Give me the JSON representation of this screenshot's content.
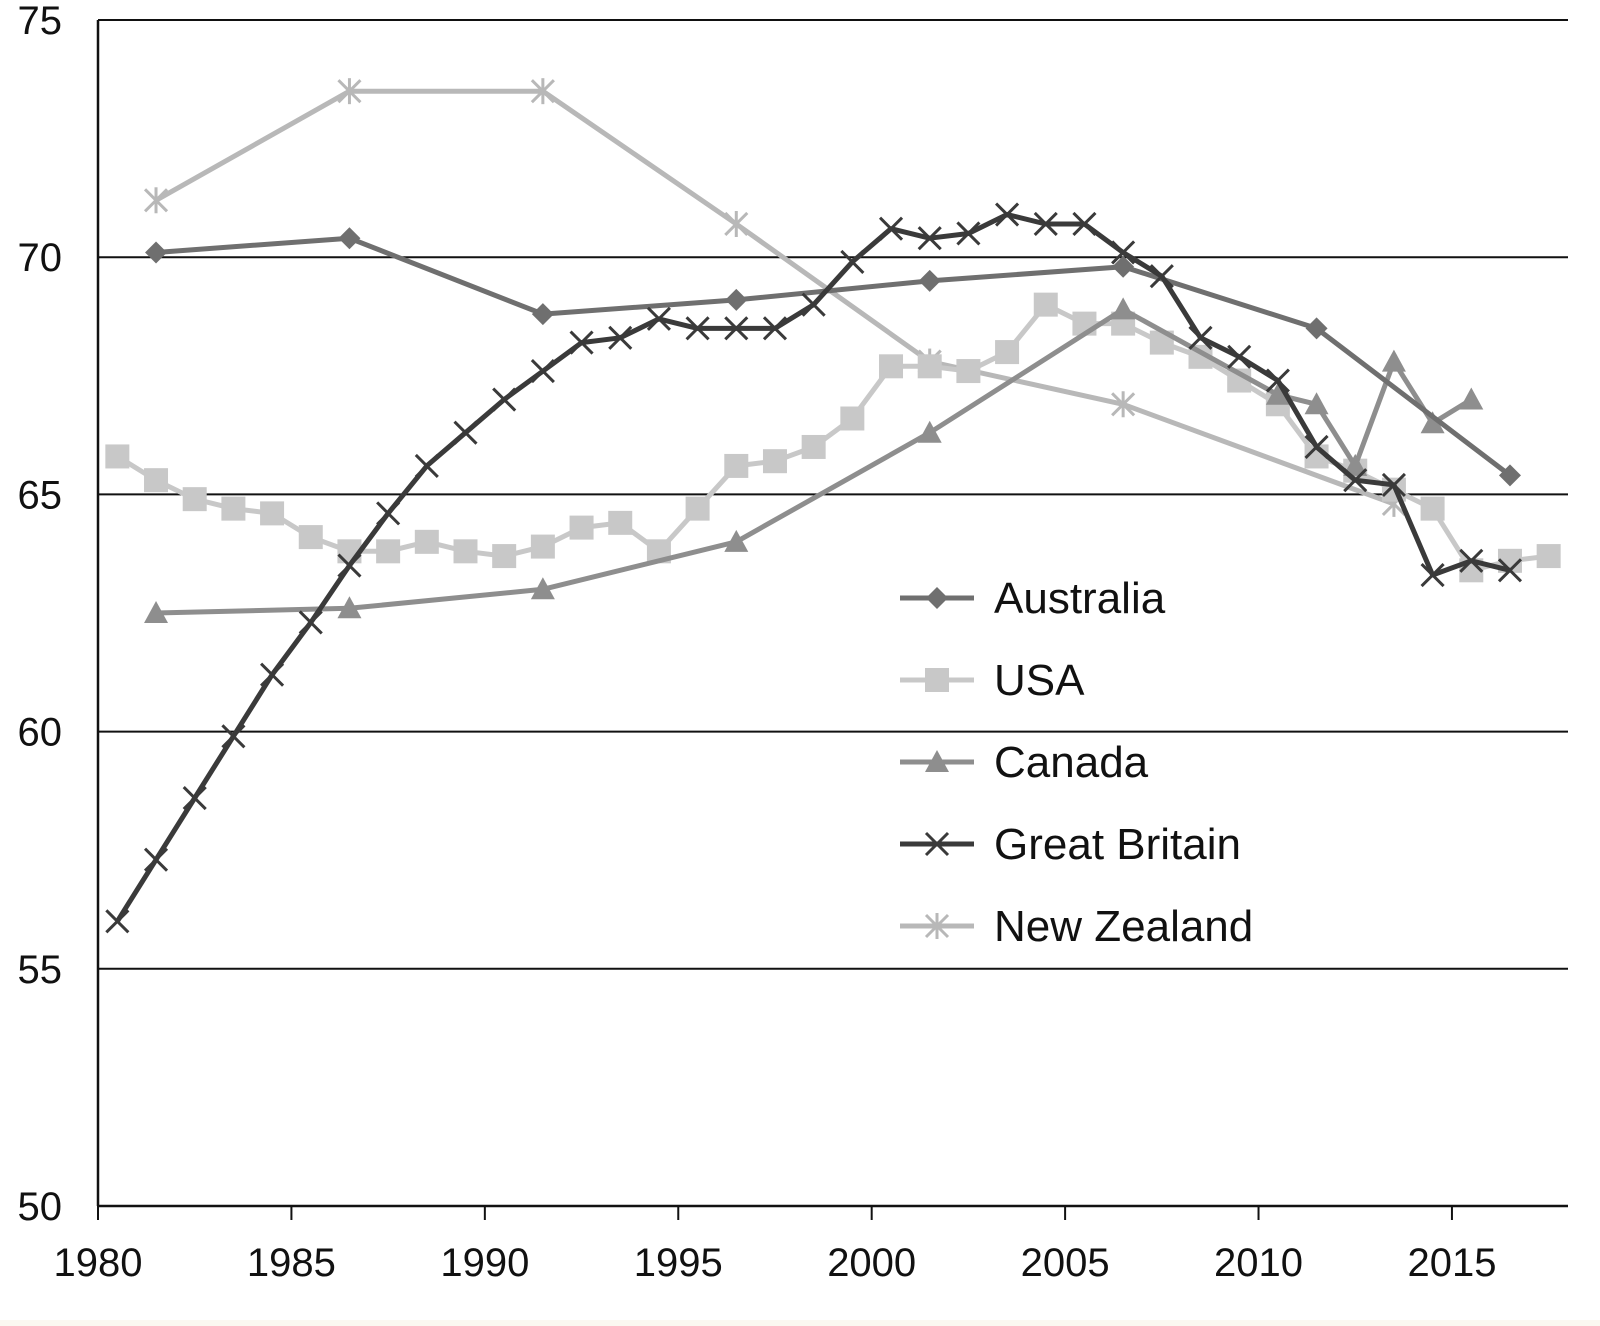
{
  "chart_data": {
    "type": "line",
    "title": "",
    "xlabel": "",
    "ylabel": "",
    "xlim": [
      1980,
      2018
    ],
    "ylim": [
      50,
      75
    ],
    "x_ticks": [
      "1980",
      "1985",
      "1990",
      "1995",
      "2000",
      "2005",
      "2010",
      "2015"
    ],
    "y_ticks": [
      "50",
      "55",
      "60",
      "65",
      "70",
      "75"
    ],
    "grid": "horizontal",
    "legend_position": "center-right",
    "series": [
      {
        "name": "Australia",
        "marker": "diamond",
        "color": "#6f6f6f",
        "x": [
          1981.5,
          1986.5,
          1991.5,
          1996.5,
          2001.5,
          2006.5,
          2011.5,
          2016.5
        ],
        "y": [
          70.1,
          70.4,
          68.8,
          69.1,
          69.5,
          69.8,
          68.5,
          65.4
        ]
      },
      {
        "name": "USA",
        "marker": "square",
        "color": "#c8c8c8",
        "x": [
          1980.5,
          1981.5,
          1982.5,
          1983.5,
          1984.5,
          1985.5,
          1986.5,
          1987.5,
          1988.5,
          1989.5,
          1990.5,
          1991.5,
          1992.5,
          1993.5,
          1994.5,
          1995.5,
          1996.5,
          1997.5,
          1998.5,
          1999.5,
          2000.5,
          2001.5,
          2002.5,
          2003.5,
          2004.5,
          2005.5,
          2006.5,
          2007.5,
          2008.5,
          2009.5,
          2010.5,
          2011.5,
          2012.5,
          2013.5,
          2014.5,
          2015.5,
          2016.5,
          2017.5
        ],
        "y": [
          65.8,
          65.3,
          64.9,
          64.7,
          64.6,
          64.1,
          63.8,
          63.8,
          64.0,
          63.8,
          63.7,
          63.9,
          64.3,
          64.4,
          63.8,
          64.7,
          65.6,
          65.7,
          66.0,
          66.6,
          67.7,
          67.7,
          67.6,
          68.0,
          69.0,
          68.6,
          68.6,
          68.2,
          67.9,
          67.4,
          66.9,
          65.8,
          65.5,
          65.1,
          64.7,
          63.4,
          63.6,
          63.7
        ]
      },
      {
        "name": "Canada",
        "marker": "triangle",
        "color": "#8e8e8e",
        "x": [
          1981.5,
          1986.5,
          1991.5,
          1996.5,
          2001.5,
          2006.5,
          2010.5,
          2011.5,
          2012.5,
          2013.5,
          2014.5,
          2015.5
        ],
        "y": [
          62.5,
          62.6,
          63.0,
          64.0,
          66.3,
          68.9,
          67.1,
          66.9,
          65.6,
          67.8,
          66.5,
          67.0
        ]
      },
      {
        "name": "Great Britain",
        "marker": "x",
        "color": "#3a3a3a",
        "x": [
          1980.5,
          1981.5,
          1982.5,
          1983.5,
          1984.5,
          1985.5,
          1986.5,
          1987.5,
          1988.5,
          1989.5,
          1990.5,
          1991.5,
          1992.5,
          1993.5,
          1994.5,
          1995.5,
          1996.5,
          1997.5,
          1998.5,
          1999.5,
          2000.5,
          2001.5,
          2002.5,
          2003.5,
          2004.5,
          2005.5,
          2006.5,
          2007.5,
          2008.5,
          2009.5,
          2010.5,
          2011.5,
          2012.5,
          2013.5,
          2014.5,
          2015.5,
          2016.5
        ],
        "y": [
          56.0,
          57.3,
          58.6,
          59.9,
          61.2,
          62.3,
          63.5,
          64.6,
          65.6,
          66.3,
          67.0,
          67.6,
          68.2,
          68.3,
          68.7,
          68.5,
          68.5,
          68.5,
          69.0,
          69.9,
          70.6,
          70.4,
          70.5,
          70.9,
          70.7,
          70.7,
          70.1,
          69.6,
          68.3,
          67.9,
          67.4,
          66.0,
          65.3,
          65.2,
          63.3,
          63.6,
          63.4
        ]
      },
      {
        "name": "New Zealand",
        "marker": "asterisk",
        "color": "#b8b8b8",
        "x": [
          1981.5,
          1986.5,
          1991.5,
          1996.5,
          2001.5,
          2006.5,
          2013.5
        ],
        "y": [
          71.2,
          73.5,
          73.5,
          70.7,
          67.8,
          66.9,
          64.8
        ]
      }
    ]
  }
}
